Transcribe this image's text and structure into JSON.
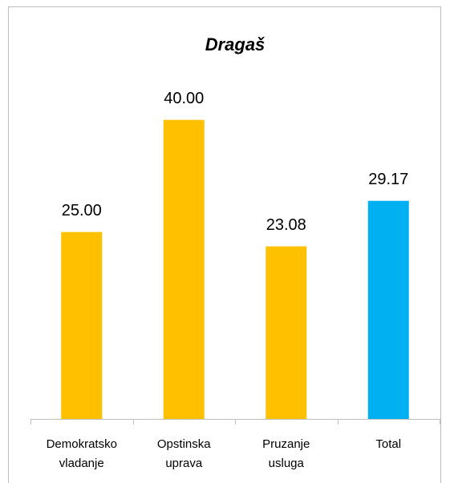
{
  "chart_data": {
    "type": "bar",
    "title": "Dragaš",
    "categories": [
      "Demokratsko vladanje",
      "Opstinska uprava",
      "Pruzanje usluga",
      "Total"
    ],
    "values": [
      25,
      40,
      23.08,
      29.17
    ],
    "value_labels": [
      "25.00",
      "40.00",
      "23.08",
      "29.17"
    ],
    "colors": [
      "#FFC000",
      "#FFC000",
      "#FFC000",
      "#00B0F0"
    ],
    "ylim": [
      0,
      45
    ]
  }
}
